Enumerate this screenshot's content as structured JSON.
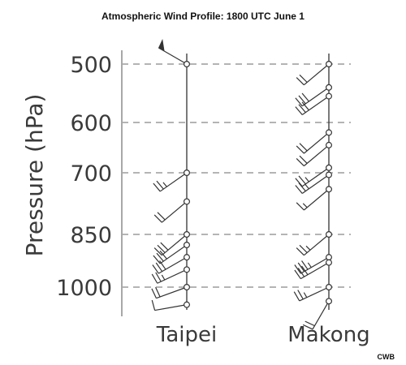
{
  "chart_data": {
    "type": "wind-profile",
    "title": "Atmospheric Wind Profile: 1800 UTC June 1",
    "ylabel": "Pressure (hPa)",
    "yticks": [
      500,
      600,
      700,
      850,
      1000
    ],
    "grid": true,
    "grid_style": "dashed",
    "colors": {
      "grid": "#b4b4b4",
      "axis": "#a8a8a8",
      "barb": "#333333",
      "text": "#3a3a3a"
    },
    "stations": [
      {
        "name": "Taipei",
        "observations": [
          {
            "pressure": 500,
            "direction": 300,
            "speed_kt": 50,
            "flag": true
          },
          {
            "pressure": 700,
            "direction": 235,
            "speed_kt": 25
          },
          {
            "pressure": 770,
            "direction": 230,
            "speed_kt": 20
          },
          {
            "pressure": 850,
            "direction": 230,
            "speed_kt": 30
          },
          {
            "pressure": 880,
            "direction": 235,
            "speed_kt": 30
          },
          {
            "pressure": 915,
            "direction": 240,
            "speed_kt": 30
          },
          {
            "pressure": 950,
            "direction": 245,
            "speed_kt": 25
          },
          {
            "pressure": 1000,
            "direction": 250,
            "speed_kt": 20
          },
          {
            "pressure": 1050,
            "direction": 260,
            "speed_kt": 10
          }
        ]
      },
      {
        "name": "Makong",
        "observations": [
          {
            "pressure": 500,
            "direction": 230,
            "speed_kt": 20
          },
          {
            "pressure": 540,
            "direction": 235,
            "speed_kt": 30
          },
          {
            "pressure": 555,
            "direction": 235,
            "speed_kt": 30
          },
          {
            "pressure": 620,
            "direction": 230,
            "speed_kt": 20
          },
          {
            "pressure": 645,
            "direction": 230,
            "speed_kt": 20
          },
          {
            "pressure": 690,
            "direction": 235,
            "speed_kt": 25
          },
          {
            "pressure": 705,
            "direction": 235,
            "speed_kt": 25
          },
          {
            "pressure": 740,
            "direction": 230,
            "speed_kt": 15
          },
          {
            "pressure": 850,
            "direction": 230,
            "speed_kt": 25
          },
          {
            "pressure": 915,
            "direction": 240,
            "speed_kt": 35
          },
          {
            "pressure": 930,
            "direction": 240,
            "speed_kt": 30
          },
          {
            "pressure": 1000,
            "direction": 245,
            "speed_kt": 25
          },
          {
            "pressure": 1040,
            "direction": 210,
            "speed_kt": 20
          }
        ]
      }
    ],
    "credit": "CWB"
  }
}
